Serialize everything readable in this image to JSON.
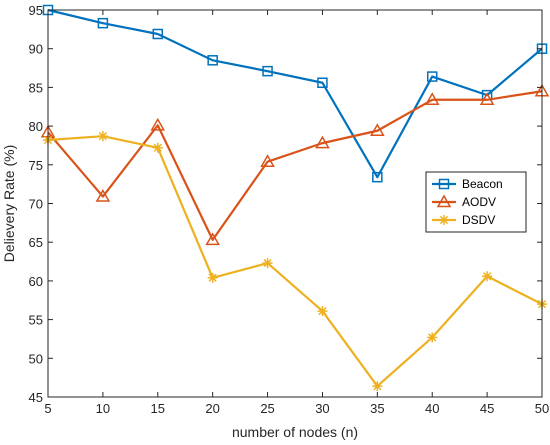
{
  "chart_data": {
    "type": "line",
    "xlabel": "number of nodes (n)",
    "ylabel": "Delievery Rate (%)",
    "xlim": [
      5,
      50
    ],
    "ylim": [
      45,
      95
    ],
    "xticks": [
      5,
      10,
      15,
      20,
      25,
      30,
      35,
      40,
      45,
      50
    ],
    "yticks": [
      45,
      50,
      55,
      60,
      65,
      70,
      75,
      80,
      85,
      90,
      95
    ],
    "grid": false,
    "legend_position": "right",
    "x": [
      5,
      10,
      15,
      20,
      25,
      30,
      35,
      40,
      45,
      50
    ],
    "series": [
      {
        "name": "Beacon",
        "color": "#0072bd",
        "marker": "square",
        "values": [
          95.0,
          93.3,
          91.9,
          88.5,
          87.1,
          85.6,
          73.4,
          86.4,
          84.0,
          90.0
        ]
      },
      {
        "name": "AODV",
        "color": "#d95319",
        "marker": "triangle",
        "values": [
          79.2,
          70.9,
          80.1,
          65.3,
          75.4,
          77.8,
          79.4,
          83.4,
          83.4,
          84.5
        ]
      },
      {
        "name": "DSDV",
        "color": "#edb120",
        "marker": "asterisk",
        "values": [
          78.2,
          78.7,
          77.2,
          60.4,
          62.3,
          56.1,
          46.4,
          52.7,
          60.6,
          57.0
        ]
      }
    ]
  }
}
